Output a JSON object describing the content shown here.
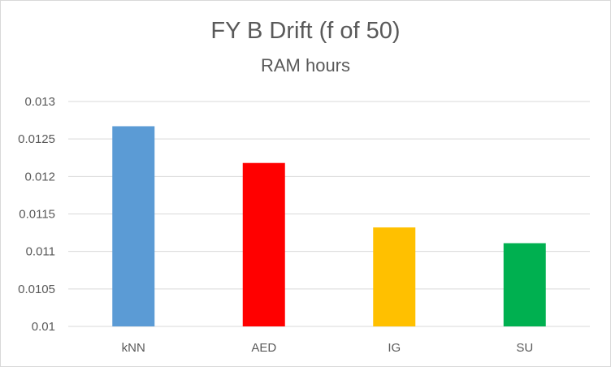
{
  "chart_data": {
    "type": "bar",
    "title": "FY B Drift (f of 50)",
    "subtitle": "RAM hours",
    "xlabel": "",
    "ylabel": "",
    "categories": [
      "kNN",
      "AED",
      "IG",
      "SU"
    ],
    "values": [
      0.01267,
      0.01218,
      0.01132,
      0.01111
    ],
    "colors": [
      "#5b9bd5",
      "#ff0000",
      "#ffc000",
      "#00b050"
    ],
    "ylim": [
      0.01,
      0.013
    ],
    "yticks": [
      "0.01",
      "0.0105",
      "0.011",
      "0.0115",
      "0.012",
      "0.0125",
      "0.013"
    ],
    "grid": true,
    "legend": "none"
  }
}
